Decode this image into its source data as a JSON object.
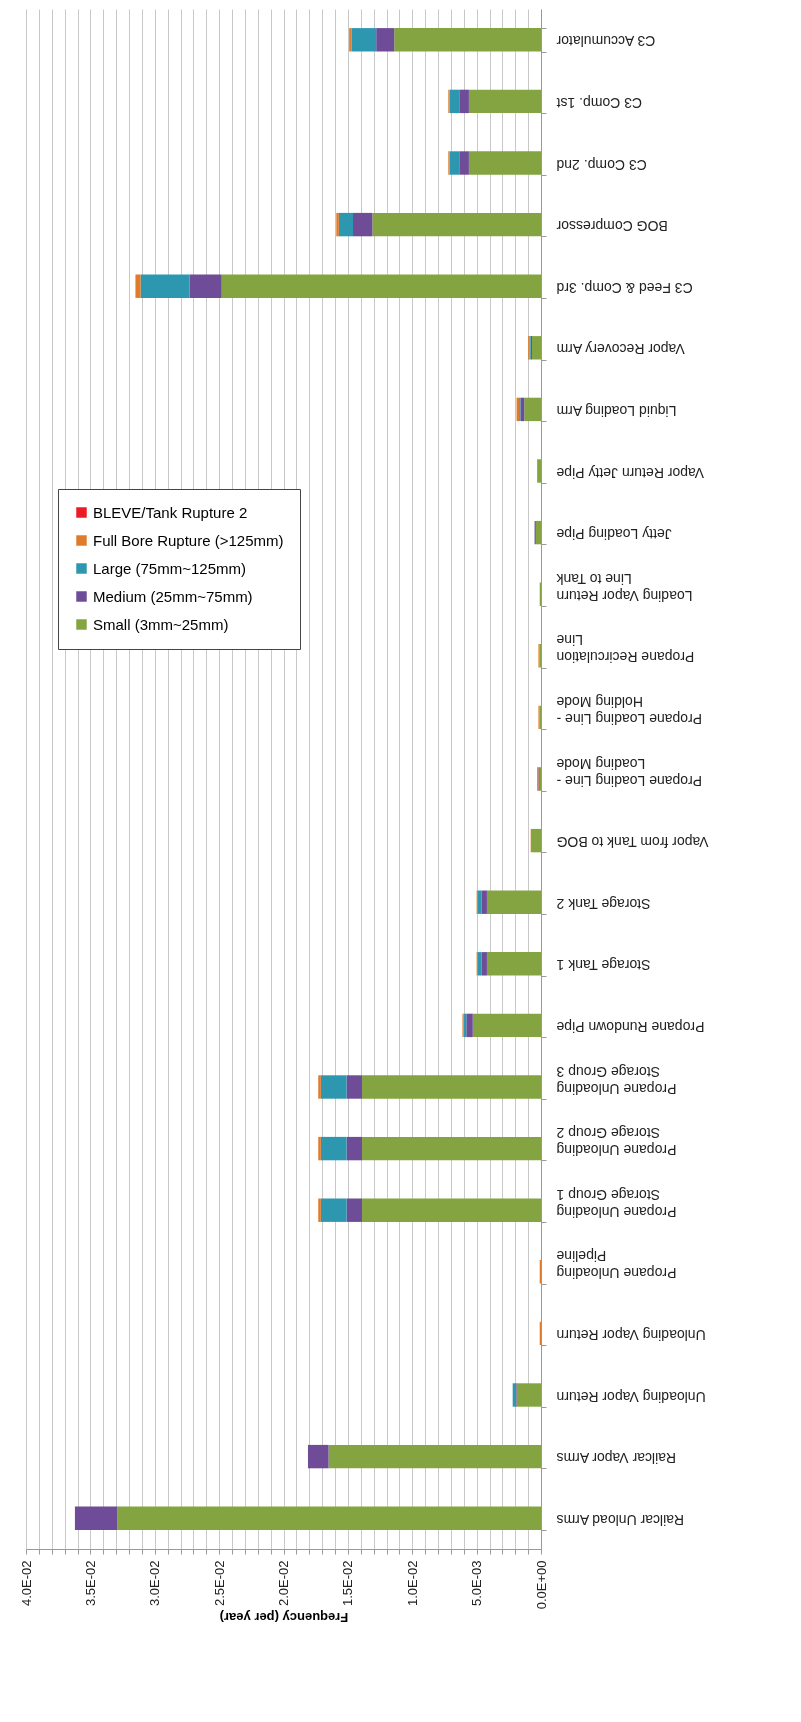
{
  "chart_data": {
    "type": "bar",
    "orientation": "horizontal",
    "stacked": true,
    "xlabel": "Frequency (per year)",
    "categories": [
      "C3 Accumulator",
      "C3 Comp. 1st",
      "C3 Comp. 2nd",
      "BOG Compressor",
      "C3 Feed & Comp. 3rd",
      "Vapor Recovery Arm",
      "Liquid Loading Arm",
      "Vapor Return Jetty Pipe",
      "Jetty Loading Pipe",
      "Loading Vapor Return Line to Tank",
      "Propane Recirculation Line",
      "Propane Loading Line - Holding Mode",
      "Propane Loading Line - Loading Mode",
      "Vapor from Tank to BOG",
      "Storage Tank 2",
      "Storage Tank 1",
      "Propane Rundown Pipe",
      "Propane Unloading Storage Group 3",
      "Propane Unloading Storage Group 2",
      "Propane Unloading Storage Group 1",
      "Propane Unloading Pipeline",
      "Unloading Vapor Return",
      "Unloading Vapor Return",
      "Railcar Vapor Arms",
      "Railcar Unload Arms"
    ],
    "series": [
      {
        "name": "Small (3mm~25mm)",
        "color": "#84a441",
        "values": [
          0.0114,
          0.0056,
          0.0056,
          0.0131,
          0.0248,
          0.0007,
          0.0013,
          0.0003,
          0.0004,
          0.0001,
          0.0001,
          0.0001,
          0.0001,
          0.0007,
          0.0042,
          0.0042,
          0.0053,
          0.0139,
          0.0139,
          0.0139,
          0,
          0,
          0.0019,
          0.0165,
          0.0329
        ]
      },
      {
        "name": "Medium (25mm~75mm)",
        "color": "#6e4c98",
        "values": [
          0.0014,
          0.0007,
          0.0007,
          0.0015,
          0.0025,
          0.0001,
          0.0003,
          0,
          0.0001,
          0,
          0,
          0,
          0.0001,
          0,
          0.0004,
          0.0004,
          0.0005,
          0.0012,
          0.0012,
          0.0012,
          0,
          0,
          0.0001,
          0.0016,
          0.0033
        ]
      },
      {
        "name": "Large (75mm~125mm)",
        "color": "#2e97b0",
        "values": [
          0.0019,
          0.0008,
          0.0008,
          0.0011,
          0.0038,
          0.0001,
          0.0001,
          0,
          0,
          0,
          0,
          0,
          0,
          0,
          0.0003,
          0.0003,
          0.0002,
          0.002,
          0.002,
          0.002,
          0,
          0,
          0.0002,
          0,
          0
        ]
      },
      {
        "name": "Full Bore Rupture (>125mm)",
        "color": "#e07b2a",
        "values": [
          0.0002,
          0.0001,
          0.0001,
          0.0002,
          0.0004,
          0.0001,
          0.0002,
          0,
          0,
          0,
          0.0001,
          0.0001,
          0.0001,
          0.0001,
          0.0001,
          0.0001,
          0.0001,
          0.0002,
          0.0002,
          0.0002,
          0.0001,
          0.0001,
          0,
          0,
          0
        ]
      },
      {
        "name": "BLEVE/Tank Rupture 2",
        "color": "#ed1c24",
        "values": [
          0,
          0,
          0,
          0,
          0,
          0,
          0,
          0,
          0,
          0,
          0,
          0,
          0,
          0,
          0,
          0,
          0,
          0,
          0,
          0,
          0,
          0,
          0,
          0,
          0
        ]
      }
    ],
    "xlim": [
      0.04,
      0
    ],
    "xticks": [
      {
        "value": 0.04,
        "label": "4.0E-02"
      },
      {
        "value": 0.039,
        "label": null
      },
      {
        "value": 0.038,
        "label": null
      },
      {
        "value": 0.037,
        "label": null
      },
      {
        "value": 0.036,
        "label": null
      },
      {
        "value": 0.035,
        "label": "3.5E-02"
      },
      {
        "value": 0.034,
        "label": null
      },
      {
        "value": 0.033,
        "label": null
      },
      {
        "value": 0.032,
        "label": null
      },
      {
        "value": 0.031,
        "label": null
      },
      {
        "value": 0.03,
        "label": "3.0E-02"
      },
      {
        "value": 0.029,
        "label": null
      },
      {
        "value": 0.028,
        "label": null
      },
      {
        "value": 0.027,
        "label": null
      },
      {
        "value": 0.026,
        "label": null
      },
      {
        "value": 0.025,
        "label": "2.5E-02"
      },
      {
        "value": 0.024,
        "label": null
      },
      {
        "value": 0.023,
        "label": null
      },
      {
        "value": 0.022,
        "label": null
      },
      {
        "value": 0.021,
        "label": null
      },
      {
        "value": 0.02,
        "label": "2.0E-02"
      },
      {
        "value": 0.019,
        "label": null
      },
      {
        "value": 0.018,
        "label": null
      },
      {
        "value": 0.017,
        "label": null
      },
      {
        "value": 0.016,
        "label": null
      },
      {
        "value": 0.015,
        "label": "1.5E-02"
      },
      {
        "value": 0.014,
        "label": null
      },
      {
        "value": 0.013,
        "label": null
      },
      {
        "value": 0.012,
        "label": null
      },
      {
        "value": 0.011,
        "label": null
      },
      {
        "value": 0.01,
        "label": "1.0E-02"
      },
      {
        "value": 0.009,
        "label": null
      },
      {
        "value": 0.008,
        "label": null
      },
      {
        "value": 0.007,
        "label": null
      },
      {
        "value": 0.006,
        "label": null
      },
      {
        "value": 0.005,
        "label": "5.0E-03"
      },
      {
        "value": 0.004,
        "label": null
      },
      {
        "value": 0.003,
        "label": null
      },
      {
        "value": 0.002,
        "label": null
      },
      {
        "value": 0.001,
        "label": null
      },
      {
        "value": 0,
        "label": "0.0E+00"
      }
    ],
    "grid": "x",
    "legend": "left"
  }
}
